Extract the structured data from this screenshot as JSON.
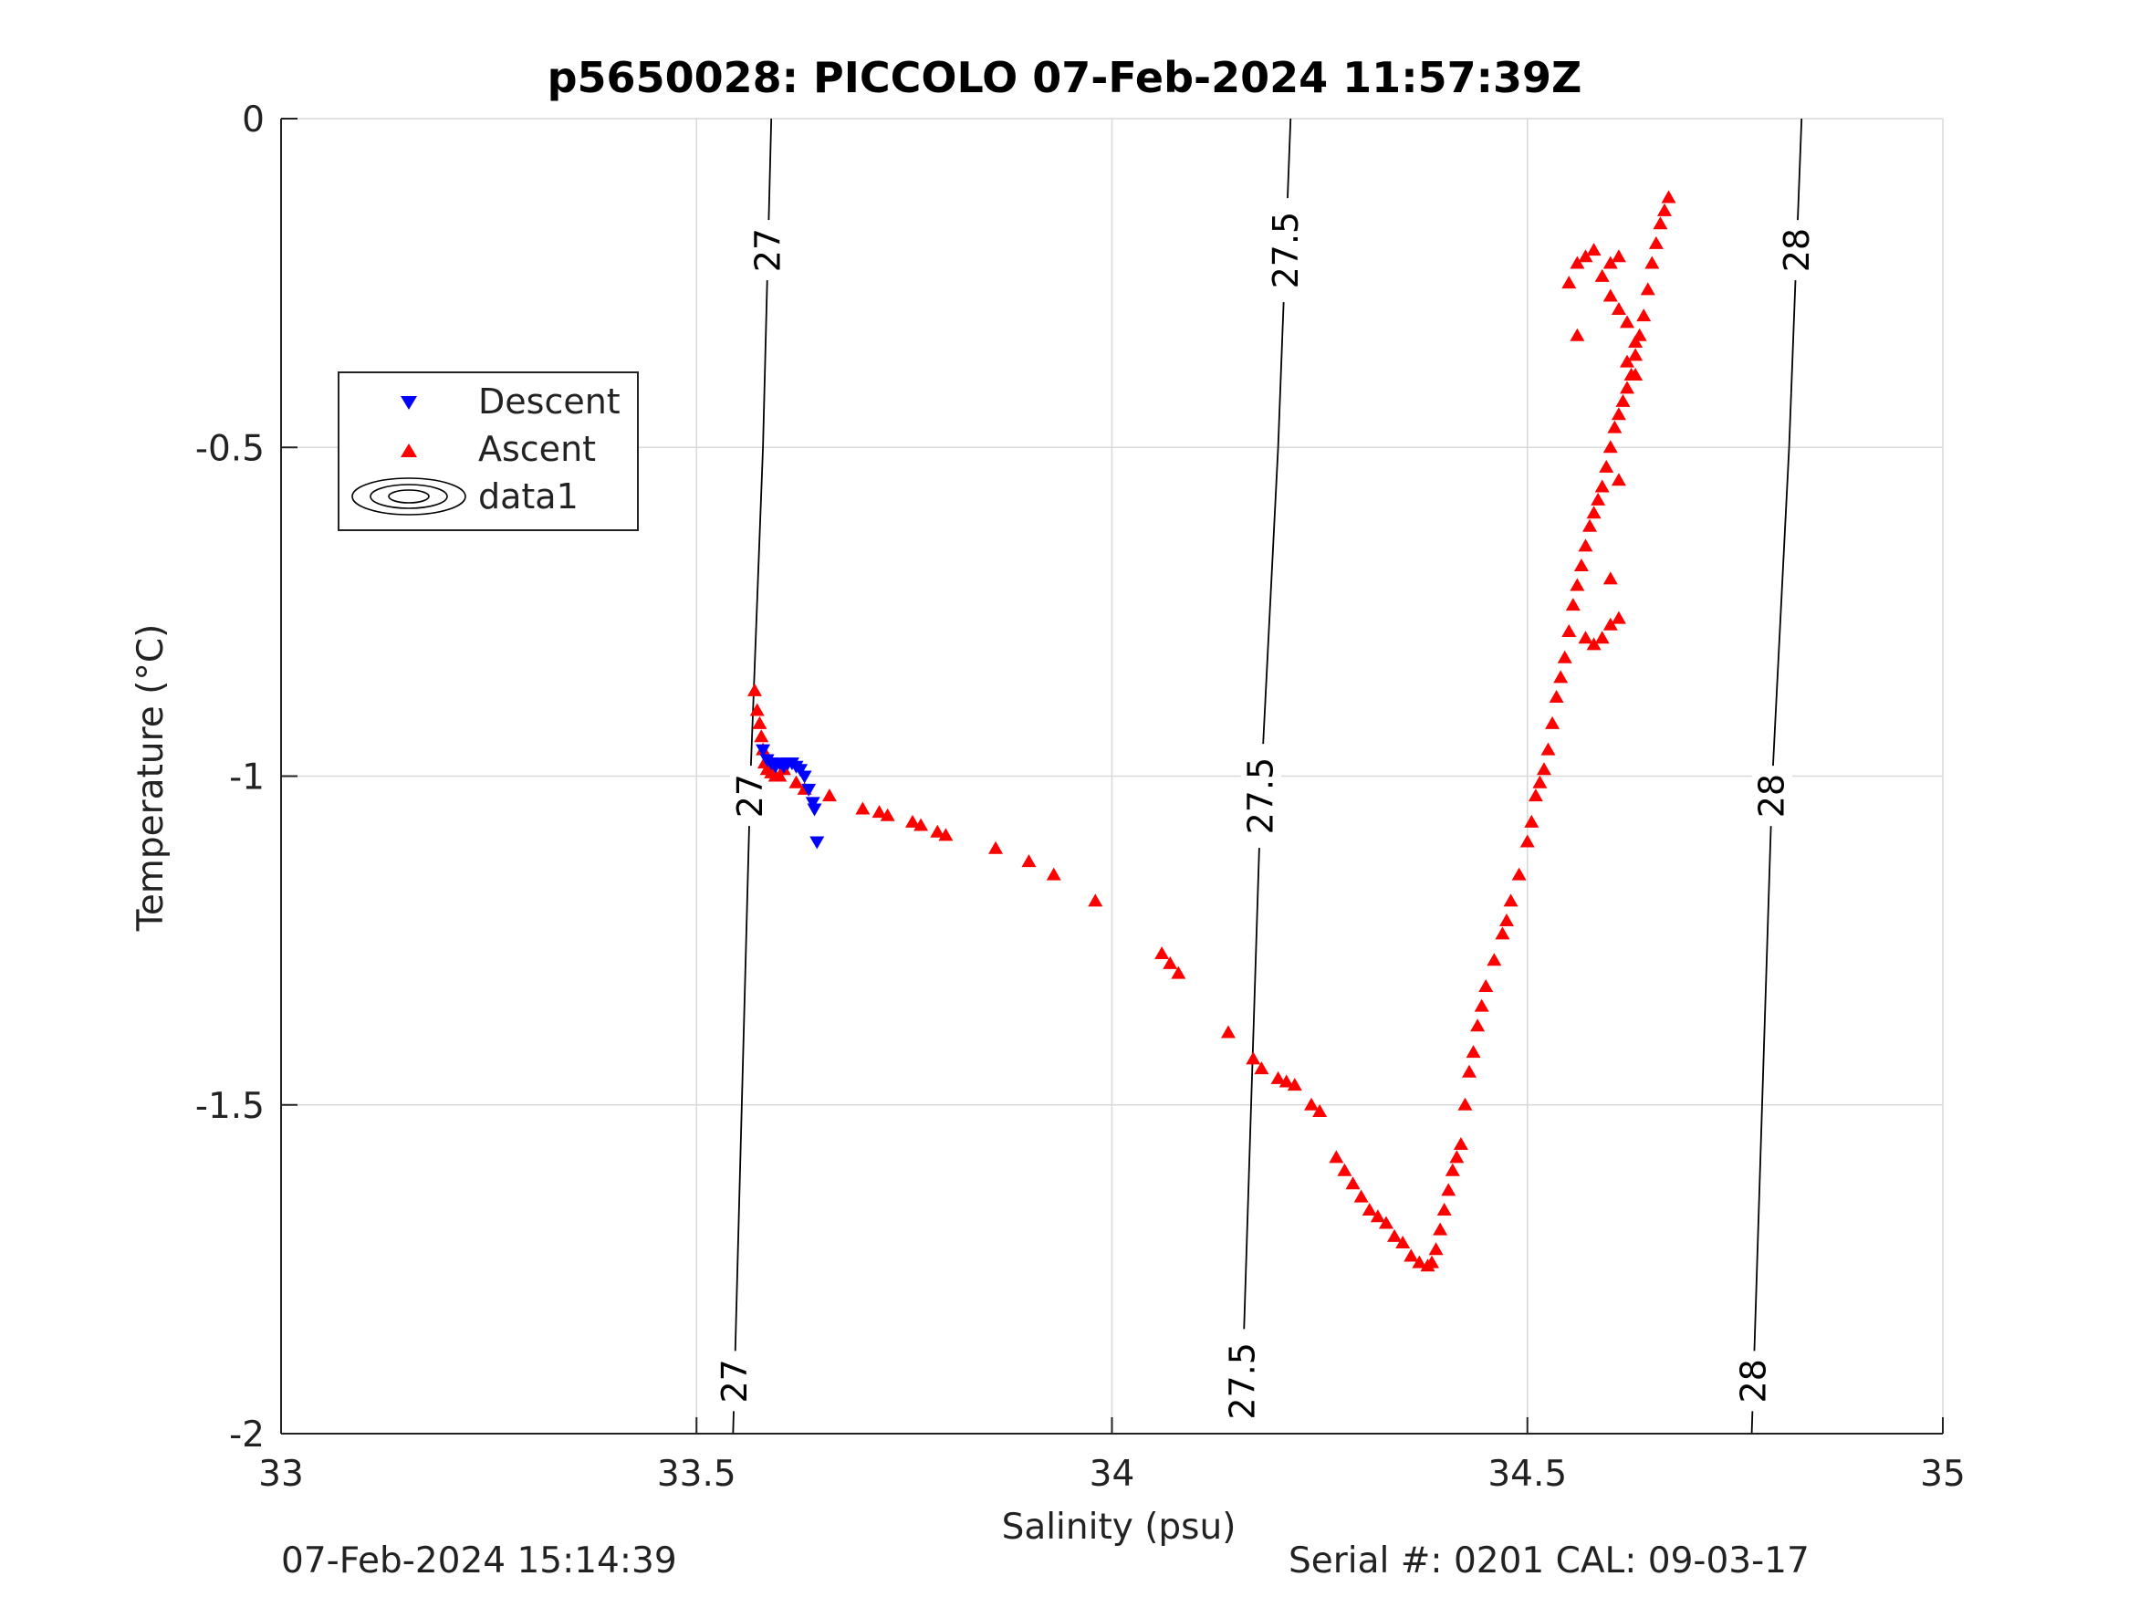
{
  "chart_data": {
    "type": "scatter",
    "title": "p5650028: PICCOLO 07-Feb-2024 11:57:39Z",
    "xlabel": "Salinity (psu)",
    "ylabel": "Temperature (°C)",
    "xlim": [
      33,
      35
    ],
    "ylim": [
      -2,
      0
    ],
    "x_ticks": [
      "33",
      "33.5",
      "34",
      "34.5",
      "35"
    ],
    "y_ticks": [
      "-2",
      "-1.5",
      "-1",
      "-0.5",
      "0"
    ],
    "grid": true,
    "legend_position": "upper-left",
    "legend": [
      "Descent",
      "Ascent",
      "data1"
    ],
    "colors": {
      "descent": "#0000ff",
      "ascent": "#ff0000",
      "contour": "#000000",
      "grid": "#d9d9d9"
    },
    "series": [
      {
        "name": "Descent",
        "marker": "triangle-down",
        "points": [
          [
            33.58,
            -0.96
          ],
          [
            33.585,
            -0.975
          ],
          [
            33.59,
            -0.98
          ],
          [
            33.595,
            -0.985
          ],
          [
            33.6,
            -0.98
          ],
          [
            33.605,
            -0.985
          ],
          [
            33.61,
            -0.98
          ],
          [
            33.615,
            -0.98
          ],
          [
            33.62,
            -0.985
          ],
          [
            33.625,
            -0.99
          ],
          [
            33.63,
            -1.0
          ],
          [
            33.635,
            -1.02
          ],
          [
            33.64,
            -1.04
          ],
          [
            33.642,
            -1.05
          ],
          [
            33.645,
            -1.1
          ]
        ]
      },
      {
        "name": "Ascent",
        "marker": "triangle-up",
        "points": [
          [
            33.57,
            -0.87
          ],
          [
            33.573,
            -0.9
          ],
          [
            33.576,
            -0.92
          ],
          [
            33.578,
            -0.94
          ],
          [
            33.58,
            -0.96
          ],
          [
            33.582,
            -0.98
          ],
          [
            33.585,
            -0.99
          ],
          [
            33.59,
            -0.995
          ],
          [
            33.595,
            -1.0
          ],
          [
            33.6,
            -1.0
          ],
          [
            33.605,
            -0.99
          ],
          [
            33.62,
            -1.01
          ],
          [
            33.63,
            -1.02
          ],
          [
            33.66,
            -1.03
          ],
          [
            33.7,
            -1.05
          ],
          [
            33.72,
            -1.055
          ],
          [
            33.73,
            -1.06
          ],
          [
            33.76,
            -1.07
          ],
          [
            33.77,
            -1.075
          ],
          [
            33.79,
            -1.085
          ],
          [
            33.8,
            -1.09
          ],
          [
            33.86,
            -1.11
          ],
          [
            33.9,
            -1.13
          ],
          [
            33.93,
            -1.15
          ],
          [
            33.98,
            -1.19
          ],
          [
            34.06,
            -1.27
          ],
          [
            34.07,
            -1.285
          ],
          [
            34.08,
            -1.3
          ],
          [
            34.14,
            -1.39
          ],
          [
            34.17,
            -1.43
          ],
          [
            34.18,
            -1.445
          ],
          [
            34.2,
            -1.46
          ],
          [
            34.21,
            -1.465
          ],
          [
            34.22,
            -1.47
          ],
          [
            34.24,
            -1.5
          ],
          [
            34.25,
            -1.51
          ],
          [
            34.27,
            -1.58
          ],
          [
            34.28,
            -1.6
          ],
          [
            34.29,
            -1.62
          ],
          [
            34.3,
            -1.64
          ],
          [
            34.31,
            -1.66
          ],
          [
            34.32,
            -1.67
          ],
          [
            34.33,
            -1.68
          ],
          [
            34.34,
            -1.7
          ],
          [
            34.35,
            -1.71
          ],
          [
            34.36,
            -1.73
          ],
          [
            34.37,
            -1.74
          ],
          [
            34.38,
            -1.745
          ],
          [
            34.385,
            -1.74
          ],
          [
            34.39,
            -1.72
          ],
          [
            34.395,
            -1.69
          ],
          [
            34.4,
            -1.66
          ],
          [
            34.405,
            -1.63
          ],
          [
            34.41,
            -1.6
          ],
          [
            34.415,
            -1.58
          ],
          [
            34.42,
            -1.56
          ],
          [
            34.425,
            -1.5
          ],
          [
            34.43,
            -1.45
          ],
          [
            34.435,
            -1.42
          ],
          [
            34.44,
            -1.38
          ],
          [
            34.445,
            -1.35
          ],
          [
            34.45,
            -1.32
          ],
          [
            34.46,
            -1.28
          ],
          [
            34.47,
            -1.24
          ],
          [
            34.475,
            -1.22
          ],
          [
            34.48,
            -1.19
          ],
          [
            34.49,
            -1.15
          ],
          [
            34.5,
            -1.1
          ],
          [
            34.505,
            -1.07
          ],
          [
            34.51,
            -1.03
          ],
          [
            34.515,
            -1.01
          ],
          [
            34.52,
            -0.99
          ],
          [
            34.525,
            -0.96
          ],
          [
            34.53,
            -0.92
          ],
          [
            34.535,
            -0.88
          ],
          [
            34.54,
            -0.85
          ],
          [
            34.545,
            -0.82
          ],
          [
            34.55,
            -0.78
          ],
          [
            34.555,
            -0.74
          ],
          [
            34.56,
            -0.71
          ],
          [
            34.565,
            -0.68
          ],
          [
            34.57,
            -0.65
          ],
          [
            34.575,
            -0.62
          ],
          [
            34.58,
            -0.6
          ],
          [
            34.585,
            -0.58
          ],
          [
            34.59,
            -0.56
          ],
          [
            34.595,
            -0.53
          ],
          [
            34.6,
            -0.5
          ],
          [
            34.605,
            -0.47
          ],
          [
            34.61,
            -0.45
          ],
          [
            34.615,
            -0.43
          ],
          [
            34.62,
            -0.41
          ],
          [
            34.625,
            -0.39
          ],
          [
            34.63,
            -0.36
          ],
          [
            34.635,
            -0.33
          ],
          [
            34.64,
            -0.3
          ],
          [
            34.645,
            -0.26
          ],
          [
            34.65,
            -0.22
          ],
          [
            34.655,
            -0.19
          ],
          [
            34.66,
            -0.16
          ],
          [
            34.665,
            -0.14
          ],
          [
            34.67,
            -0.12
          ],
          [
            34.57,
            -0.79
          ],
          [
            34.58,
            -0.8
          ],
          [
            34.59,
            -0.79
          ],
          [
            34.6,
            -0.77
          ],
          [
            34.61,
            -0.76
          ],
          [
            34.6,
            -0.7
          ],
          [
            34.56,
            -0.33
          ],
          [
            34.55,
            -0.25
          ],
          [
            34.56,
            -0.22
          ],
          [
            34.57,
            -0.21
          ],
          [
            34.58,
            -0.2
          ],
          [
            34.59,
            -0.24
          ],
          [
            34.6,
            -0.27
          ],
          [
            34.61,
            -0.29
          ],
          [
            34.62,
            -0.31
          ],
          [
            34.63,
            -0.34
          ],
          [
            34.62,
            -0.37
          ],
          [
            34.63,
            -0.39
          ],
          [
            34.61,
            -0.55
          ],
          [
            34.6,
            -0.22
          ],
          [
            34.61,
            -0.21
          ]
        ]
      },
      {
        "name": "data1",
        "type": "contour",
        "levels": [
          {
            "label": "27",
            "line": [
              [
                33.544,
                -2.0
              ],
              [
                33.565,
                -1.0
              ],
              [
                33.58,
                -0.5
              ],
              [
                33.59,
                0.0
              ]
            ]
          },
          {
            "label": "27.5",
            "line": [
              [
                34.155,
                -2.0
              ],
              [
                34.18,
                -1.0
              ],
              [
                34.2,
                -0.5
              ],
              [
                34.215,
                0.0
              ]
            ]
          },
          {
            "label": "28",
            "line": [
              [
                34.77,
                -2.0
              ],
              [
                34.795,
                -1.0
              ],
              [
                34.815,
                -0.5
              ],
              [
                34.83,
                0.0
              ]
            ]
          }
        ]
      }
    ]
  },
  "footer": {
    "left": "07-Feb-2024 15:14:39",
    "right": "Serial #: 0201  CAL: 09-03-17"
  }
}
